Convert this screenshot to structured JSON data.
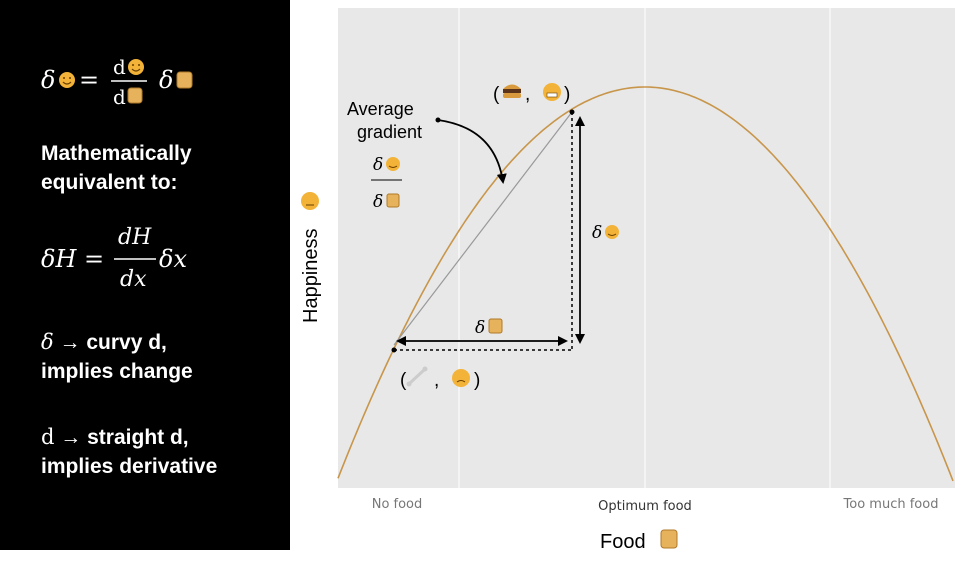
{
  "left_panel": {
    "eq_top": {
      "lhs": "δ",
      "equals": "=",
      "num": "d",
      "den": "d",
      "rhs": "δ"
    },
    "line_equiv_1": "Mathematically",
    "line_equiv_2": "equivalent to:",
    "eq_mid": {
      "lhs": "δH =",
      "num": "dH",
      "den": "dx",
      "rhs": "δx"
    },
    "delta_line_symbol": "δ",
    "delta_line_1_rest": "→ curvy d,",
    "delta_line_2": "implies change",
    "d_line_symbol": "d",
    "d_line_1_rest": "→ straight d,",
    "d_line_2": "implies derivative"
  },
  "chart_data": {
    "type": "line",
    "x_ticks": [
      "No food",
      "Optimum food",
      "Too much food"
    ],
    "xlabel": "Food",
    "ylabel": "Happiness",
    "series": [
      {
        "shape": "inverted-parabola",
        "color": "#c8964b"
      }
    ],
    "points": {
      "low": {
        "label": "( , )",
        "icons": [
          "bone-icon",
          "sad-face-icon"
        ]
      },
      "high": {
        "label": "( , )",
        "icons": [
          "burger-icon",
          "grin-face-icon"
        ]
      }
    },
    "annotations": {
      "avg_gradient_line1": "Average",
      "avg_gradient_line2": "gradient",
      "frac_num": "δ",
      "frac_den": "δ",
      "delta_x": "δ",
      "delta_y": "δ"
    },
    "colors": {
      "panel_bg": "#e8e8e8",
      "grid": "#ffffff",
      "curve": "#c8964b",
      "chord": "#999999"
    }
  }
}
